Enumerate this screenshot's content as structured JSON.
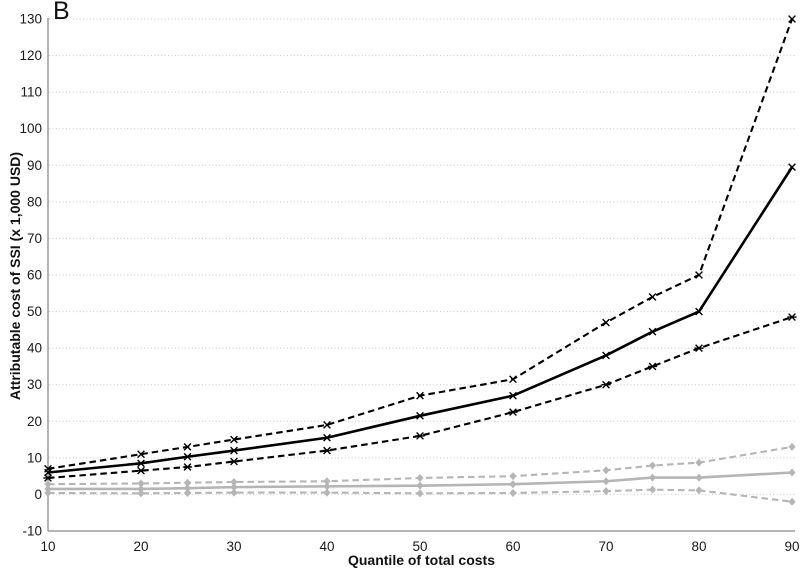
{
  "figure": {
    "panel_label": "B"
  },
  "chart_data": {
    "type": "line",
    "title": "B",
    "xlabel": "Quantile of total costs",
    "ylabel": "Attributable cost of SSI (x 1,000 USD)",
    "xlim": [
      10,
      90
    ],
    "ylim": [
      -10,
      130
    ],
    "x_ticks": [
      10,
      20,
      30,
      40,
      50,
      60,
      70,
      80,
      90
    ],
    "y_ticks": [
      -10,
      0,
      10,
      20,
      30,
      40,
      50,
      60,
      70,
      80,
      90,
      100,
      110,
      120,
      130
    ],
    "grid": "horizontal dotted gridlines",
    "legend": "none",
    "x": [
      10,
      20,
      25,
      30,
      40,
      50,
      60,
      70,
      75,
      80,
      90
    ],
    "series": [
      {
        "name": "black-upper-ci",
        "color": "#000000",
        "style": "dashed",
        "marker": "x",
        "values": [
          7,
          11,
          13,
          15,
          19,
          27,
          31.5,
          47,
          54,
          60,
          130
        ]
      },
      {
        "name": "black-estimate",
        "color": "#000000",
        "style": "solid",
        "marker": "x",
        "values": [
          6,
          8.5,
          10.3,
          12,
          15.5,
          21.5,
          27,
          38,
          44.5,
          50,
          89.5
        ]
      },
      {
        "name": "black-lower-ci",
        "color": "#000000",
        "style": "dashed",
        "marker": "asterisk",
        "values": [
          4.5,
          6.5,
          7.5,
          9,
          12,
          16,
          22.5,
          30,
          35,
          40,
          48.5
        ]
      },
      {
        "name": "gray-upper-ci",
        "color": "#b5b5b5",
        "style": "dashed",
        "marker": "diamond",
        "values": [
          2.8,
          3,
          3.2,
          3.4,
          3.6,
          4.5,
          5,
          6.6,
          7.9,
          8.7,
          13
        ]
      },
      {
        "name": "gray-estimate",
        "color": "#b5b5b5",
        "style": "solid",
        "marker": "diamond",
        "values": [
          1.5,
          1.5,
          1.7,
          2,
          2.2,
          2.4,
          2.8,
          3.6,
          4.6,
          4.6,
          6
        ]
      },
      {
        "name": "gray-lower-ci",
        "color": "#b5b5b5",
        "style": "dashed",
        "marker": "diamond",
        "values": [
          0.4,
          0.3,
          0.4,
          0.5,
          0.5,
          0.3,
          0.4,
          0.9,
          1.3,
          1.1,
          -2
        ]
      }
    ],
    "colors": {
      "black_series": "#000000",
      "gray_series": "#b5b5b5",
      "gridline": "#c8c8c8",
      "axis_line": "#8c8c8c",
      "tick_text": "#1a1a1a"
    }
  }
}
